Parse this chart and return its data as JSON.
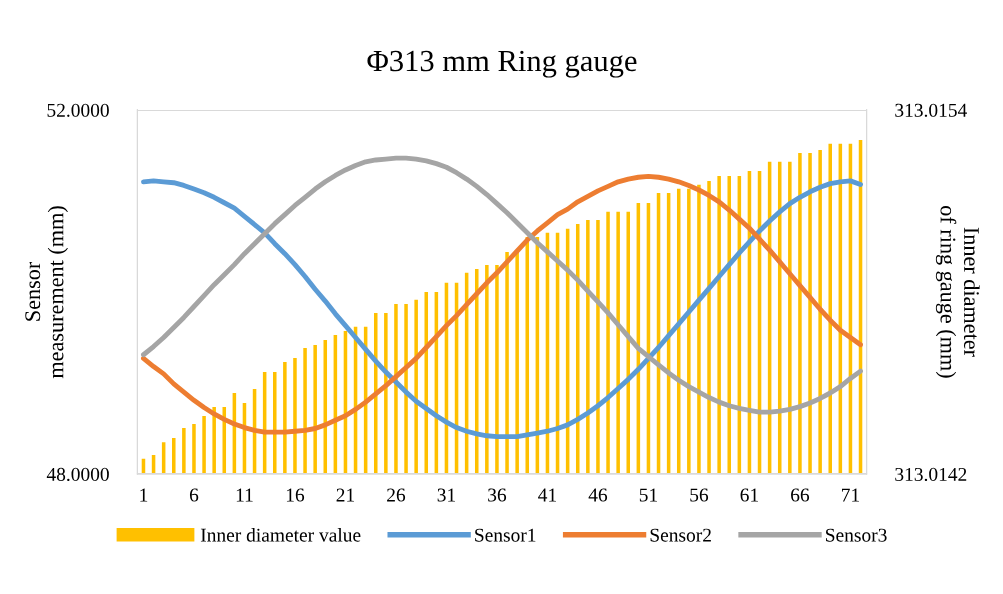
{
  "chart_data": {
    "type": "line",
    "title": "Φ313 mm Ring gauge",
    "ylabel": "Sensor\nmeasurement (mm)",
    "y2label": "Inner diameter\nof ring gauge (mm)",
    "categories": [
      "1",
      null,
      null,
      null,
      null,
      "6",
      null,
      null,
      null,
      null,
      "11",
      null,
      null,
      null,
      null,
      "16",
      null,
      null,
      null,
      null,
      "21",
      null,
      null,
      null,
      null,
      "26",
      null,
      null,
      null,
      null,
      "31",
      null,
      null,
      null,
      null,
      "36",
      null,
      null,
      null,
      null,
      "41",
      null,
      null,
      null,
      null,
      "46",
      null,
      null,
      null,
      null,
      "51",
      null,
      null,
      null,
      null,
      "56",
      null,
      null,
      null,
      null,
      "61",
      null,
      null,
      null,
      null,
      "66",
      null,
      null,
      null,
      null,
      "71",
      null
    ],
    "ylim": [
      48,
      52
    ],
    "yticks": [
      {
        "value": 48,
        "label": "48.0000"
      },
      {
        "value": 52,
        "label": "52.0000"
      }
    ],
    "y2lim": [
      313.0142,
      313.0154
    ],
    "y2ticks": [
      {
        "value": 313.0142,
        "label": "313.0142"
      },
      {
        "value": 313.0154,
        "label": "313.0154"
      }
    ],
    "grid": "y",
    "legend": "bottom",
    "marker": "none",
    "line_style": "solid",
    "series": [
      {
        "name": "Inner diameter value",
        "type": "bar",
        "axis": "y2",
        "color": "#ffc000",
        "values": [
          313.01425,
          313.014263,
          313.014305,
          313.014319,
          313.014352,
          313.014365,
          313.014391,
          313.014421,
          313.014421,
          313.014467,
          313.014434,
          313.01448,
          313.014536,
          313.014536,
          313.014569,
          313.014582,
          313.014615,
          313.014625,
          313.014642,
          313.014658,
          313.014671,
          313.014685,
          313.014685,
          313.014731,
          313.014731,
          313.01476,
          313.01476,
          313.014774,
          313.0148,
          313.0148,
          313.01483,
          313.01483,
          313.014863,
          313.014876,
          313.014889,
          313.014889,
          313.014932,
          313.014932,
          313.014981,
          313.014981,
          313.014995,
          313.014995,
          313.015008,
          313.015024,
          313.015037,
          313.015037,
          313.015064,
          313.015064,
          313.015064,
          313.015093,
          313.015093,
          313.015126,
          313.015126,
          313.01514,
          313.01514,
          313.015153,
          313.015166,
          313.015182,
          313.015182,
          313.015182,
          313.015199,
          313.015199,
          313.015229,
          313.015229,
          313.015229,
          313.015258,
          313.015258,
          313.015268,
          313.015288,
          313.015288,
          313.015288,
          313.015301
        ]
      },
      {
        "name": "Sensor1",
        "color": "#5b9bd5",
        "values": [
          51.21,
          51.22,
          51.21,
          51.2,
          51.17,
          51.13,
          51.09,
          51.04,
          50.98,
          50.92,
          50.83,
          50.74,
          50.65,
          50.53,
          50.42,
          50.3,
          50.17,
          50.03,
          49.9,
          49.76,
          49.63,
          49.5,
          49.37,
          49.24,
          49.12,
          49.01,
          48.9,
          48.8,
          48.72,
          48.64,
          48.57,
          48.51,
          48.47,
          48.44,
          48.42,
          48.41,
          48.41,
          48.41,
          48.43,
          48.45,
          48.47,
          48.5,
          48.54,
          48.6,
          48.67,
          48.75,
          48.84,
          48.94,
          49.04,
          49.15,
          49.27,
          49.39,
          49.52,
          49.65,
          49.78,
          49.91,
          50.04,
          50.17,
          50.3,
          50.43,
          50.55,
          50.67,
          50.78,
          50.88,
          50.97,
          51.04,
          51.1,
          51.15,
          51.19,
          51.21,
          51.22,
          51.18
        ]
      },
      {
        "name": "Sensor2",
        "color": "#ed7d31",
        "values": [
          49.27,
          49.18,
          49.1,
          48.99,
          48.9,
          48.81,
          48.73,
          48.66,
          48.6,
          48.55,
          48.51,
          48.48,
          48.46,
          48.46,
          48.46,
          48.47,
          48.48,
          48.5,
          48.54,
          48.59,
          48.64,
          48.71,
          48.79,
          48.88,
          48.97,
          49.07,
          49.17,
          49.27,
          49.39,
          49.51,
          49.63,
          49.74,
          49.86,
          49.98,
          50.1,
          50.21,
          50.33,
          50.45,
          50.57,
          50.67,
          50.76,
          50.85,
          50.91,
          50.99,
          51.05,
          51.11,
          51.16,
          51.21,
          51.24,
          51.26,
          51.27,
          51.26,
          51.24,
          51.21,
          51.17,
          51.12,
          51.06,
          50.99,
          50.9,
          50.8,
          50.7,
          50.58,
          50.46,
          50.33,
          50.2,
          50.07,
          49.94,
          49.81,
          49.69,
          49.58,
          49.5,
          49.42
        ]
      },
      {
        "name": "Sensor3",
        "color": "#a5a5a5",
        "values": [
          49.31,
          49.4,
          49.5,
          49.61,
          49.72,
          49.84,
          49.96,
          50.08,
          50.19,
          50.3,
          50.42,
          50.53,
          50.64,
          50.75,
          50.85,
          50.95,
          51.04,
          51.13,
          51.21,
          51.28,
          51.34,
          51.39,
          51.43,
          51.45,
          51.46,
          51.47,
          51.47,
          51.46,
          51.44,
          51.41,
          51.37,
          51.31,
          51.24,
          51.16,
          51.07,
          50.97,
          50.87,
          50.76,
          50.65,
          50.54,
          50.44,
          50.34,
          50.24,
          50.13,
          50.01,
          49.89,
          49.77,
          49.64,
          49.51,
          49.38,
          49.29,
          49.2,
          49.11,
          49.03,
          48.96,
          48.9,
          48.84,
          48.79,
          48.75,
          48.72,
          48.7,
          48.68,
          48.68,
          48.69,
          48.71,
          48.74,
          48.78,
          48.83,
          48.89,
          48.96,
          49.05,
          49.13
        ]
      }
    ]
  }
}
